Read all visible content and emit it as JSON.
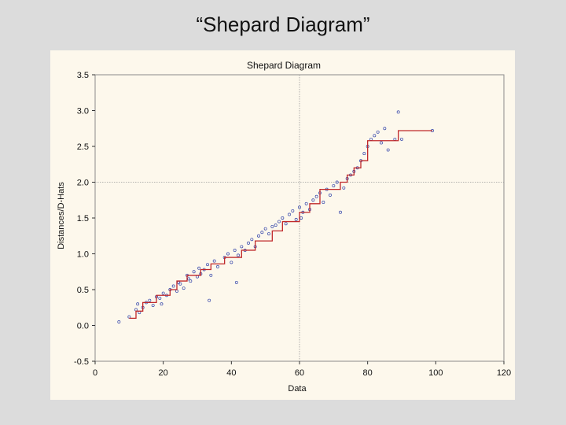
{
  "slide": {
    "title": "“Shepard Diagram”"
  },
  "chart_data": {
    "type": "scatter",
    "title": "Shepard Diagram",
    "xlabel": "Data",
    "ylabel": "Distances/D-Hats",
    "xlim": [
      0,
      120
    ],
    "ylim": [
      -0.5,
      3.5
    ],
    "xticks": [
      0,
      20,
      40,
      60,
      80,
      100,
      120
    ],
    "yticks": [
      -0.5,
      0.0,
      0.5,
      1.0,
      1.5,
      2.0,
      2.5,
      3.0,
      3.5
    ],
    "xtick_labels": [
      "0",
      "20",
      "40",
      "60",
      "80",
      "100",
      "120"
    ],
    "ytick_labels": [
      "-0.5",
      "0.0",
      "0.5",
      "1.0",
      "1.5",
      "2.0",
      "2.5",
      "3.0",
      "3.5"
    ],
    "reference_lines": {
      "x": 60,
      "y": 2.0
    },
    "colors": {
      "points": "#3344aa",
      "step": "#c0282a",
      "grid": "#9a9a9a"
    },
    "series": [
      {
        "name": "Distances",
        "kind": "points",
        "x": [
          7,
          10,
          12,
          12.5,
          13,
          14,
          15,
          16,
          17,
          18,
          19,
          19.5,
          20,
          21,
          22,
          23,
          24,
          24.5,
          25,
          26,
          27,
          27.5,
          28,
          29,
          30,
          30.5,
          31,
          32,
          33,
          33.5,
          34,
          35,
          36,
          38,
          39,
          40,
          41,
          41.5,
          42,
          43,
          44,
          45,
          46,
          47,
          48,
          49,
          50,
          51,
          52,
          53,
          54,
          55,
          56,
          57,
          58,
          59,
          60,
          60.5,
          61,
          62,
          63,
          64,
          65,
          66,
          67,
          68,
          69,
          70,
          71,
          72,
          73,
          74,
          75,
          76,
          77,
          78,
          79,
          80,
          81,
          82,
          83,
          84,
          85,
          86,
          88,
          89,
          90,
          99
        ],
        "y": [
          0.05,
          0.12,
          0.22,
          0.3,
          0.18,
          0.25,
          0.32,
          0.35,
          0.28,
          0.4,
          0.38,
          0.3,
          0.45,
          0.42,
          0.5,
          0.55,
          0.48,
          0.6,
          0.58,
          0.52,
          0.7,
          0.65,
          0.62,
          0.75,
          0.68,
          0.8,
          0.72,
          0.78,
          0.85,
          0.35,
          0.7,
          0.9,
          0.82,
          0.95,
          1.0,
          0.88,
          1.05,
          0.6,
          0.98,
          1.1,
          1.05,
          1.15,
          1.2,
          1.1,
          1.25,
          1.3,
          1.35,
          1.28,
          1.38,
          1.4,
          1.45,
          1.5,
          1.42,
          1.55,
          1.6,
          1.48,
          1.65,
          1.5,
          1.58,
          1.7,
          1.62,
          1.75,
          1.8,
          1.85,
          1.72,
          1.9,
          1.82,
          1.95,
          2.0,
          1.58,
          1.92,
          2.05,
          2.1,
          2.15,
          2.2,
          2.3,
          2.4,
          2.5,
          2.6,
          2.65,
          2.7,
          2.55,
          2.75,
          2.45,
          2.6,
          2.98,
          2.6,
          2.72
        ]
      },
      {
        "name": "D-Hats",
        "kind": "step",
        "x": [
          10,
          12,
          14,
          18,
          22,
          24,
          27,
          31,
          34,
          38,
          43,
          47,
          52,
          55,
          60,
          63,
          66,
          72,
          74,
          76,
          78,
          80,
          89,
          99
        ],
        "y": [
          0.1,
          0.2,
          0.32,
          0.42,
          0.5,
          0.62,
          0.7,
          0.78,
          0.86,
          0.95,
          1.05,
          1.18,
          1.32,
          1.45,
          1.58,
          1.7,
          1.9,
          2.0,
          2.1,
          2.2,
          2.3,
          2.58,
          2.72,
          2.72
        ]
      }
    ]
  }
}
